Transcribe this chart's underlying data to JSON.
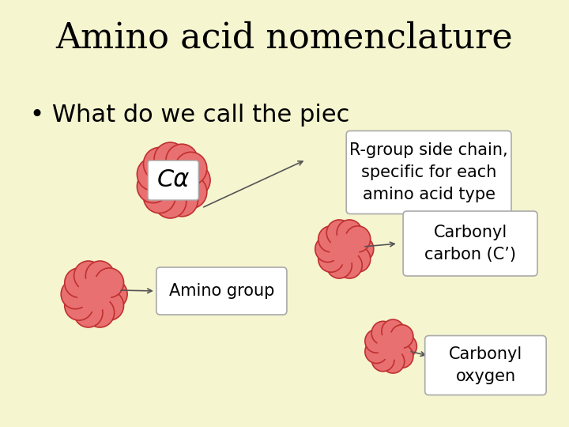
{
  "bg_color": "#f5f5d0",
  "title": "Amino acid nomenclature",
  "title_fontsize": 32,
  "title_font": "DejaVu Serif",
  "bullet_text": "• What do we call the piec",
  "bullet_fontsize": 22,
  "blob_color": "#e87070",
  "blob_edge_color": "#c03030",
  "box_color": "#ffffff",
  "box_edge_color": "#aaaaaa",
  "labels": {
    "calpha": "Cα",
    "rgroup": "R-group side chain,\nspecific for each\namino acid type",
    "amino": "Amino group",
    "carbonyl_c": "Carbonyl\ncarbon (C’)",
    "carbonyl_o": "Carbonyl\noxygen"
  },
  "font_family": "Comic Sans MS",
  "label_fontsize": 15,
  "calpha_fontsize": 22
}
